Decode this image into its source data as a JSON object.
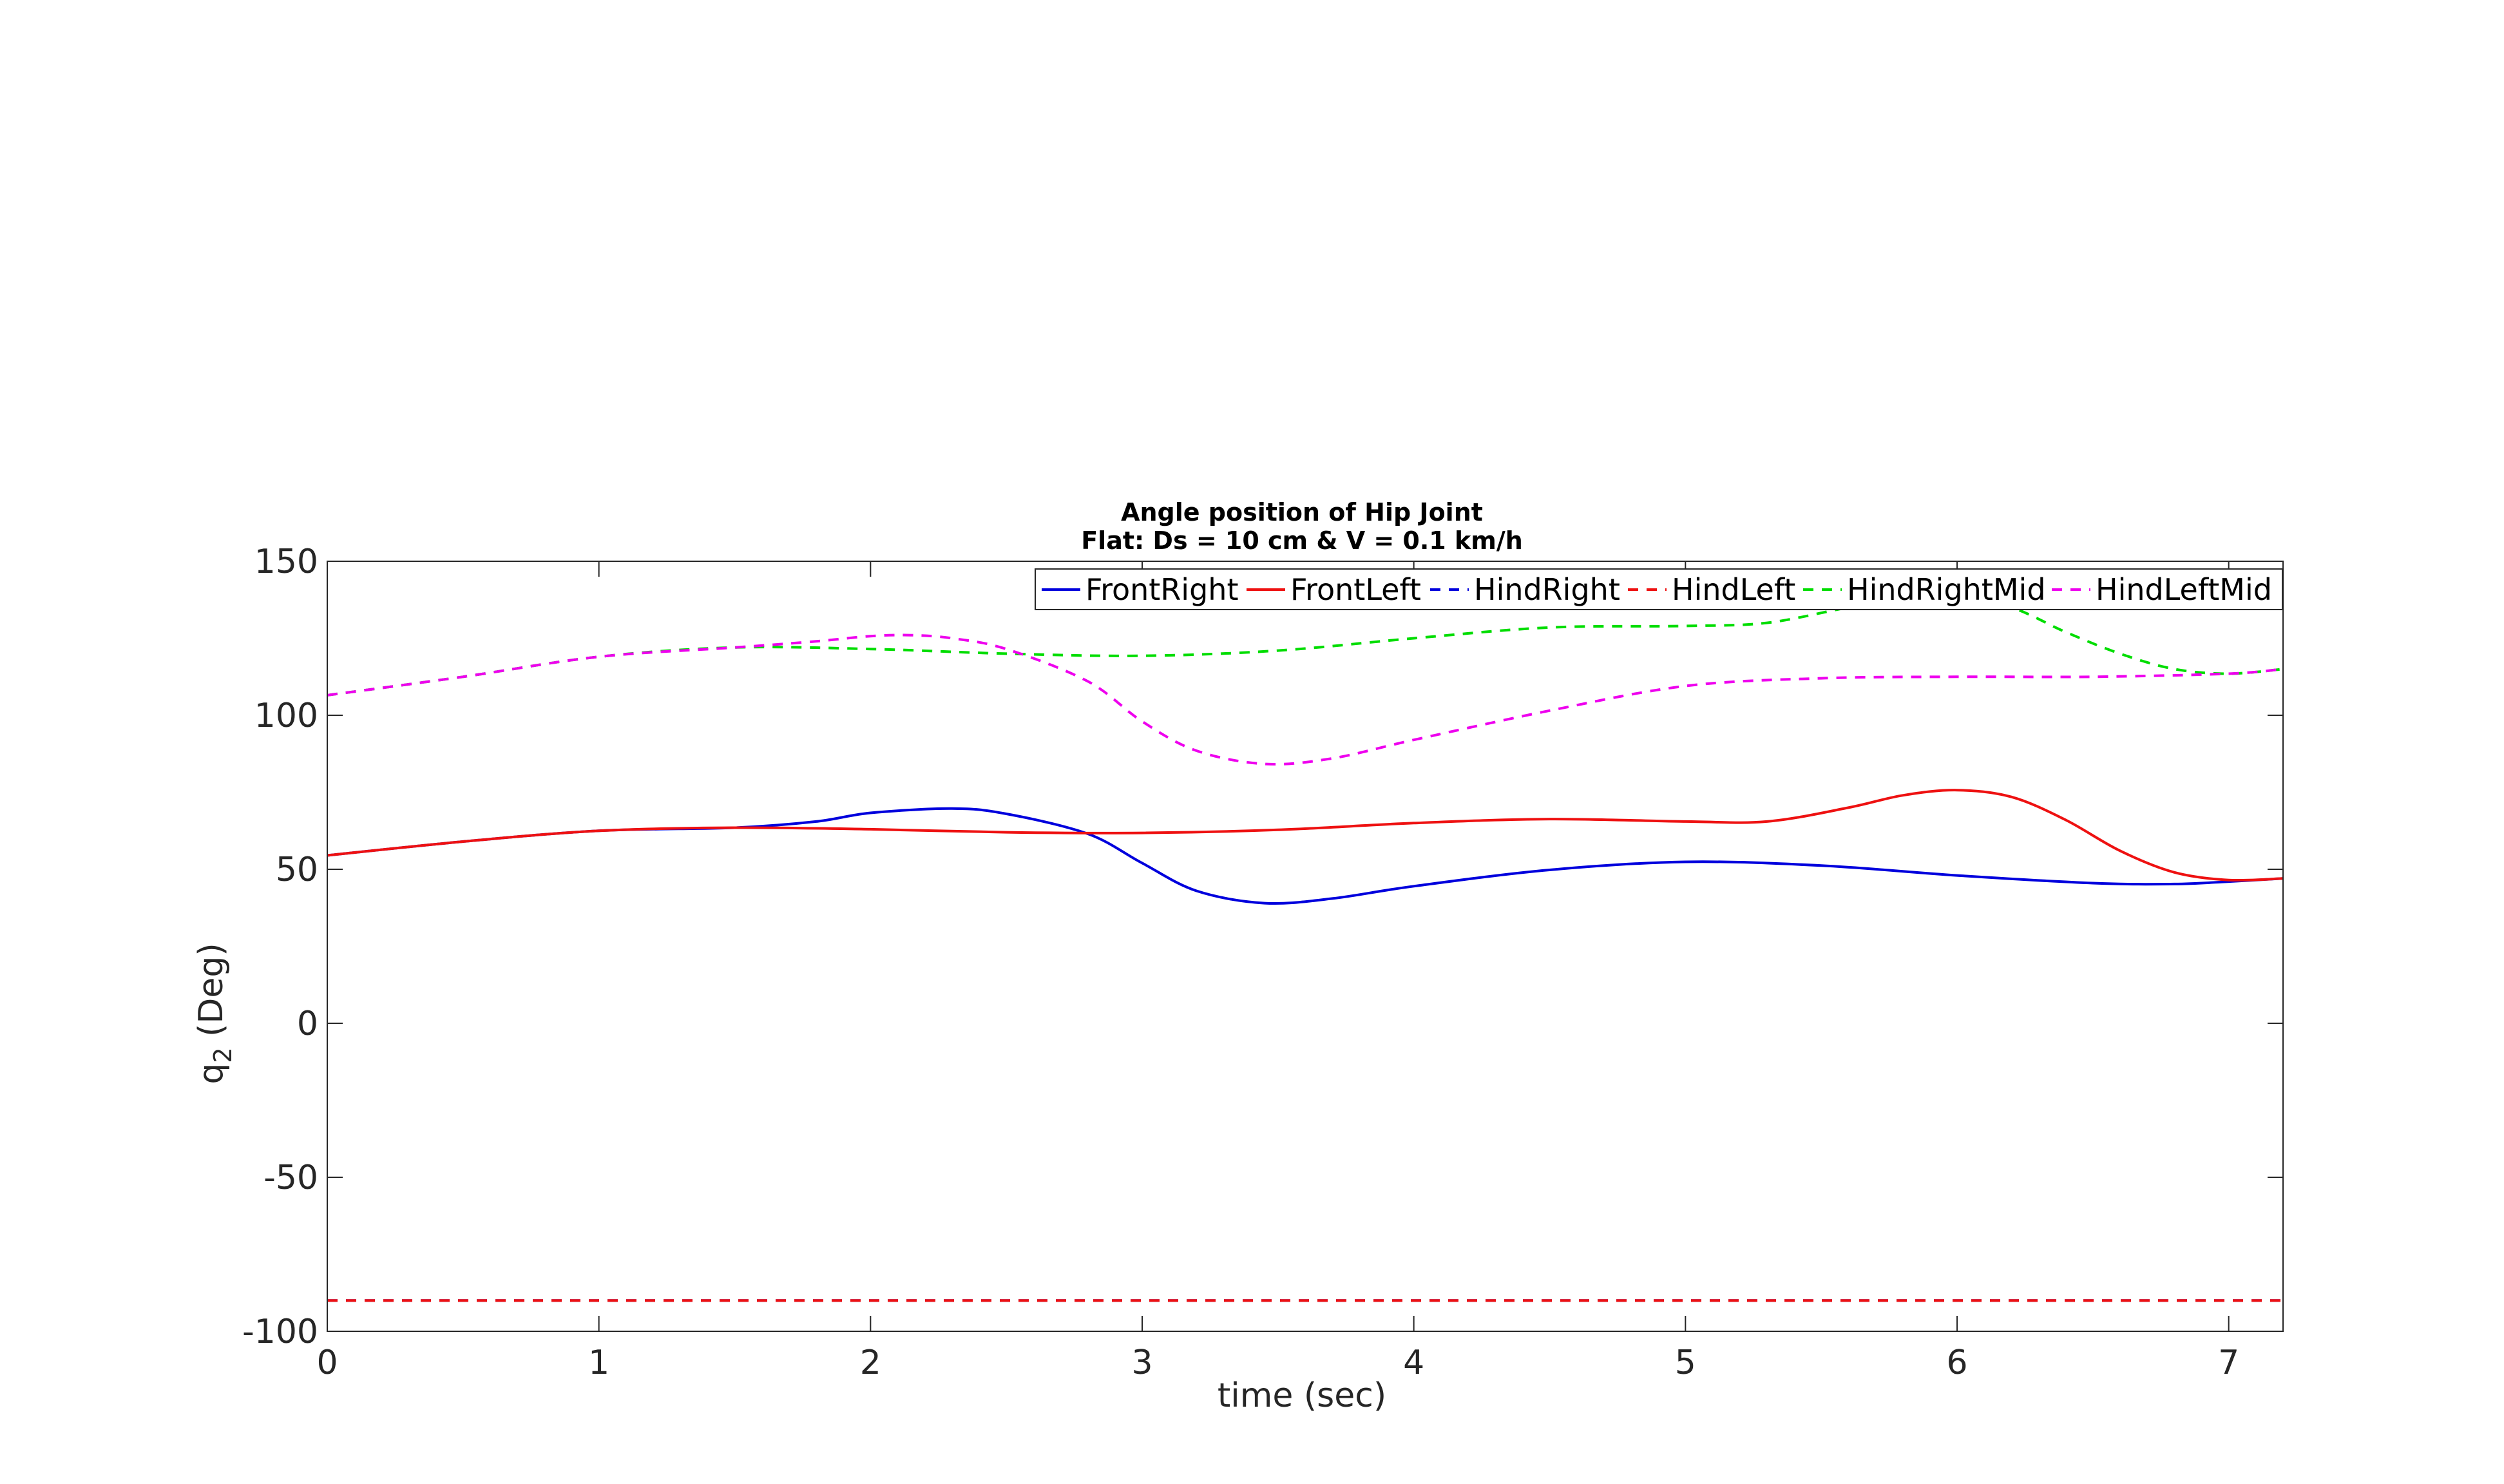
{
  "chart_data": {
    "type": "line",
    "title": "Angle position of Hip Joint",
    "subtitle": "Flat: Ds = 10 cm & V = 0.1 km/h",
    "xlabel": "time (sec)",
    "ylabel_main": "q",
    "ylabel_sub": "2",
    "ylabel_unit": " (Deg)",
    "xlim": [
      0,
      7.2
    ],
    "ylim": [
      -100,
      150
    ],
    "xticks": [
      0,
      1,
      2,
      3,
      4,
      5,
      6,
      7
    ],
    "yticks": [
      -100,
      -50,
      0,
      50,
      100,
      150
    ],
    "grid": false,
    "legend": "top-right-horizontal",
    "series": [
      {
        "name": "FrontRight",
        "color": "#0000dd",
        "dash": "solid",
        "x": [
          0,
          0.5,
          1,
          1.5,
          1.8,
          2.0,
          2.3,
          2.5,
          2.8,
          3.0,
          3.2,
          3.45,
          3.7,
          4.0,
          4.5,
          5.0,
          5.5,
          6.0,
          6.5,
          6.8,
          7.0,
          7.2
        ],
        "y": [
          54.5,
          59,
          62.5,
          63.5,
          65.5,
          68.3,
          69.7,
          68,
          61.5,
          52,
          43,
          39,
          40.5,
          44.5,
          49.8,
          52.4,
          51.2,
          48,
          45.5,
          45.2,
          46,
          47
        ]
      },
      {
        "name": "FrontLeft",
        "color": "#ee1111",
        "dash": "solid",
        "x": [
          0,
          0.5,
          1,
          1.5,
          2.0,
          2.5,
          3.0,
          3.5,
          4.0,
          4.5,
          5.0,
          5.3,
          5.6,
          5.8,
          6.0,
          6.2,
          6.4,
          6.6,
          6.8,
          7.0,
          7.2
        ],
        "y": [
          54.5,
          59,
          62.5,
          63.5,
          63,
          62,
          61.8,
          62.8,
          65,
          66.3,
          65.5,
          65.5,
          70,
          74,
          75.7,
          73.5,
          66,
          56,
          49,
          46.5,
          47
        ]
      },
      {
        "name": "HindRight",
        "color": "#0000dd",
        "dash": "dashed",
        "x": [
          0,
          7.2
        ],
        "y": [
          -90,
          -90
        ]
      },
      {
        "name": "HindLeft",
        "color": "#ee1111",
        "dash": "dashed",
        "x": [
          0,
          7.2
        ],
        "y": [
          -90,
          -90
        ]
      },
      {
        "name": "HindRightMid",
        "color": "#00dd00",
        "dash": "dashed",
        "x": [
          0,
          0.5,
          1,
          1.5,
          2.0,
          2.5,
          3.0,
          3.5,
          4.0,
          4.5,
          5.0,
          5.3,
          5.6,
          5.8,
          6.0,
          6.2,
          6.4,
          6.6,
          6.8,
          7.0,
          7.2
        ],
        "y": [
          106.5,
          112.5,
          119,
          122,
          121.5,
          120,
          119.3,
          121,
          125,
          128.5,
          129,
          130,
          135,
          137.5,
          138,
          135,
          127,
          120,
          115,
          113.5,
          115
        ]
      },
      {
        "name": "HindLeftMid",
        "color": "#ee00ee",
        "dash": "dashed",
        "x": [
          0,
          0.5,
          1,
          1.5,
          1.8,
          2.0,
          2.15,
          2.3,
          2.5,
          2.8,
          3.0,
          3.2,
          3.45,
          3.7,
          4.0,
          4.5,
          5.0,
          5.5,
          6.0,
          6.5,
          7.0,
          7.2
        ],
        "y": [
          106.5,
          112.5,
          119,
          122,
          124,
          125.7,
          126,
          125,
          121.5,
          111,
          98,
          88.5,
          84.2,
          86,
          92,
          101.5,
          109.5,
          112,
          112.5,
          112.5,
          113.5,
          115
        ]
      }
    ]
  }
}
